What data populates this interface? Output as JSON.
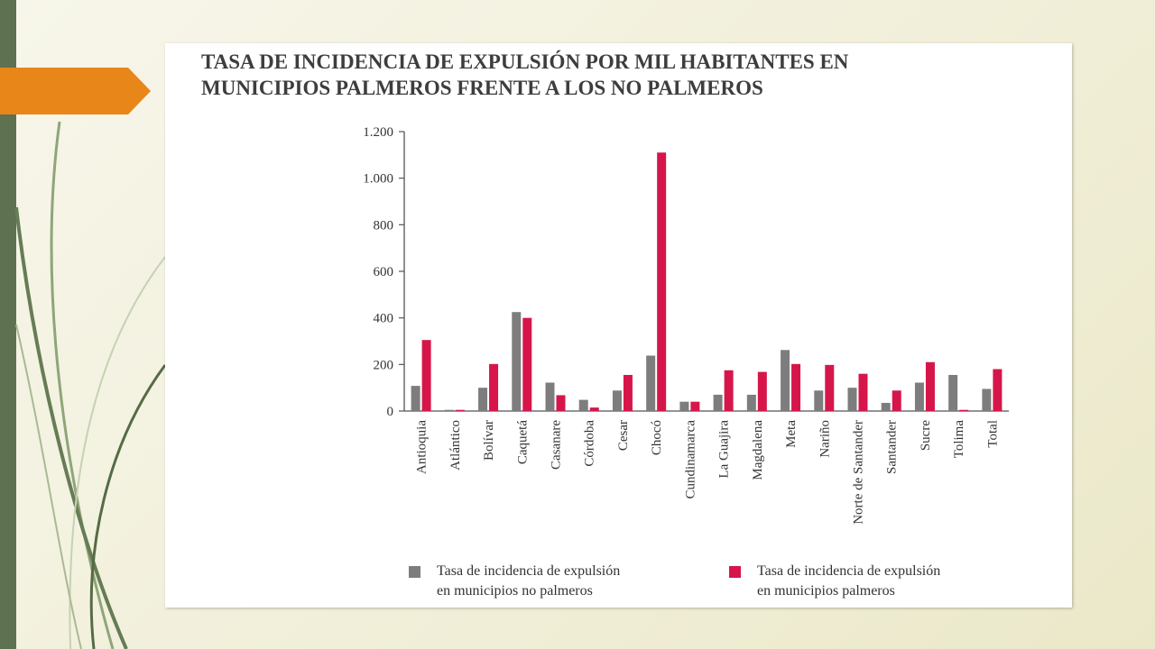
{
  "colors": {
    "sidebar": "#5e7150",
    "arrow": "#e8861a",
    "no_palmeros": "#7d7d7d",
    "palmeros": "#d6164a"
  },
  "chart_data": {
    "type": "bar",
    "title": "TASA DE INCIDENCIA DE EXPULSIÓN POR MIL HABITANTES EN\nMUNICIPIOS PALMEROS FRENTE A LOS NO PALMEROS",
    "xlabel": "",
    "ylabel": "",
    "ylim": [
      0,
      1200
    ],
    "yticks": [
      0,
      200,
      400,
      600,
      800,
      1000,
      1200
    ],
    "ytick_labels": [
      "0",
      "200",
      "400",
      "600",
      "800",
      "1.000",
      "1.200"
    ],
    "grid": false,
    "legend_position": "bottom",
    "categories": [
      "Antioquia",
      "Atlántico",
      "Bolívar",
      "Caquetá",
      "Casanare",
      "Córdoba",
      "Cesar",
      "Chocó",
      "Cundinamarca",
      "La Guajira",
      "Magdalena",
      "Meta",
      "Nariño",
      "Norte de Santander",
      "Santander",
      "Sucre",
      "Tolima",
      "Total"
    ],
    "series": [
      {
        "name": "Tasa de incidencia de expulsión\nen municipios no palmeros",
        "color": "#7d7d7d",
        "values": [
          108,
          5,
          100,
          425,
          122,
          48,
          88,
          238,
          40,
          70,
          70,
          262,
          88,
          100,
          35,
          122,
          155,
          95
        ]
      },
      {
        "name": "Tasa de incidencia de expulsión\n en municipios palmeros",
        "color": "#d6164a",
        "values": [
          305,
          5,
          202,
          400,
          68,
          15,
          155,
          1110,
          40,
          175,
          168,
          202,
          198,
          160,
          88,
          210,
          5,
          180
        ]
      }
    ]
  }
}
